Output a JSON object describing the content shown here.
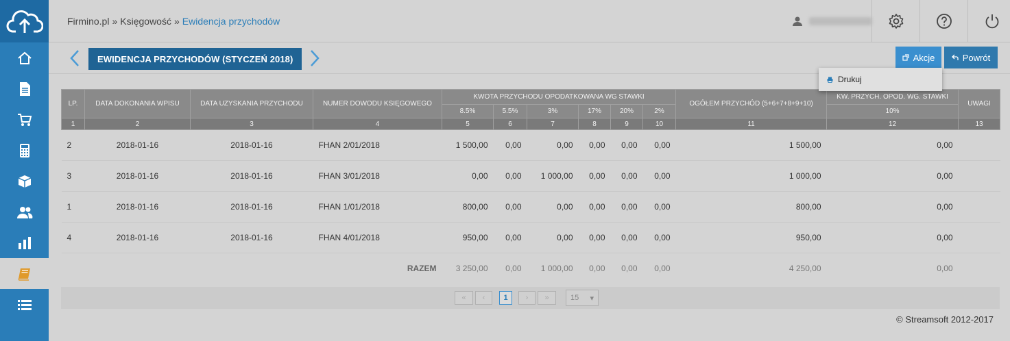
{
  "breadcrumb": {
    "home": "Firmino.pl",
    "sep1": "»",
    "section": "Księgowość",
    "sep2": "»",
    "current": "Ewidencja przychodów"
  },
  "page": {
    "title": "EWIDENCJA PRZYCHODÓW (STYCZEŃ 2018)"
  },
  "actions": {
    "akcje": "Akcje",
    "powrot": "Powrót",
    "drukuj": "Drukuj"
  },
  "table": {
    "headers": {
      "lp": "LP.",
      "data_wpisu": "DATA DOKONANIA WPISU",
      "data_przychodu": "DATA UZYSKANIA PRZYCHODU",
      "numer": "NUMER DOWODU KSIĘGOWEGO",
      "kwota": "KWOTA PRZYCHODU OPODATKOWANA WG STAWKI",
      "ogolem": "OGÓŁEM PRZYCHÓD (5+6+7+8+9+10)",
      "kw": "KW. PRZYCH. OPOD. WG. STAWKI",
      "uwagi": "UWAGI",
      "rates": [
        "8.5%",
        "5.5%",
        "3%",
        "17%",
        "20%",
        "2%"
      ],
      "rate10": "10%",
      "nums": [
        "1",
        "2",
        "3",
        "4",
        "5",
        "6",
        "7",
        "8",
        "9",
        "10",
        "11",
        "12",
        "13"
      ]
    },
    "rows": [
      [
        "2",
        "2018-01-16",
        "2018-01-16",
        "FHAN 2/01/2018",
        "1 500,00",
        "0,00",
        "0,00",
        "0,00",
        "0,00",
        "0,00",
        "1 500,00",
        "0,00",
        ""
      ],
      [
        "3",
        "2018-01-16",
        "2018-01-16",
        "FHAN 3/01/2018",
        "0,00",
        "0,00",
        "1 000,00",
        "0,00",
        "0,00",
        "0,00",
        "1 000,00",
        "0,00",
        ""
      ],
      [
        "1",
        "2018-01-16",
        "2018-01-16",
        "FHAN 1/01/2018",
        "800,00",
        "0,00",
        "0,00",
        "0,00",
        "0,00",
        "0,00",
        "800,00",
        "0,00",
        ""
      ],
      [
        "4",
        "2018-01-16",
        "2018-01-16",
        "FHAN 4/01/2018",
        "950,00",
        "0,00",
        "0,00",
        "0,00",
        "0,00",
        "0,00",
        "950,00",
        "0,00",
        ""
      ]
    ],
    "sum": {
      "label": "RAZEM",
      "values": [
        "3 250,00",
        "0,00",
        "1 000,00",
        "0,00",
        "0,00",
        "0,00",
        "4 250,00",
        "0,00"
      ]
    }
  },
  "pager": {
    "first": "«",
    "prev": "‹",
    "page": "1",
    "next": "›",
    "last": "»",
    "per_page": "15",
    "caret": "▾"
  },
  "footer": "© Streamsoft 2012-2017",
  "icons": {
    "logo": "cloud-upload-icon",
    "home": "home-icon",
    "doc": "document-icon",
    "cart": "cart-icon",
    "calc": "calculator-icon",
    "box": "box-icon",
    "users": "users-icon",
    "chart": "bar-chart-icon",
    "book": "book-icon",
    "list": "list-icon"
  },
  "colors": {
    "sidebar": "#2a7db8",
    "accent": "#3a8fcf",
    "title": "#1f6394",
    "book_icon": "#e09a2b"
  }
}
